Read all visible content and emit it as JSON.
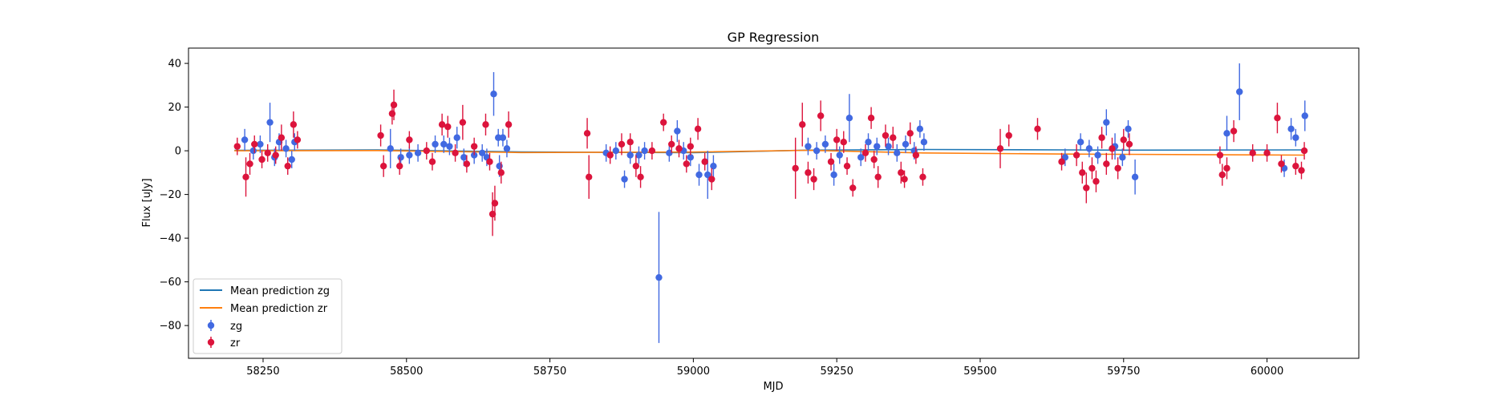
{
  "chart_data": {
    "type": "scatter",
    "title": "GP Regression",
    "xlabel": "MJD",
    "ylabel": "Flux [uJy]",
    "xlim": [
      58120,
      60160
    ],
    "ylim": [
      -95,
      47
    ],
    "xticks": [
      58250,
      58500,
      58750,
      59000,
      59250,
      59500,
      59750,
      60000
    ],
    "yticks": [
      -80,
      -60,
      -40,
      -20,
      0,
      20,
      40
    ],
    "grid": false,
    "legend_position": "lower-left",
    "lines": [
      {
        "name": "Mean prediction zg",
        "color": "#1f77b4",
        "x": [
          58200,
          58450,
          58700,
          59000,
          59200,
          59400,
          59650,
          59750,
          60065
        ],
        "y": [
          0.2,
          0.4,
          -0.5,
          -0.9,
          0.3,
          0.6,
          0.4,
          0.3,
          0.4
        ]
      },
      {
        "name": "Mean prediction zr",
        "color": "#ff7f0e",
        "x": [
          58200,
          58450,
          58700,
          59000,
          59200,
          59400,
          59650,
          59750,
          60065
        ],
        "y": [
          0.0,
          0.1,
          -0.8,
          -0.6,
          0.2,
          -1.0,
          -1.5,
          -1.6,
          -2.0
        ]
      }
    ],
    "series": [
      {
        "name": "zg",
        "color": "#4169e1",
        "points": [
          [
            58218,
            5,
            5
          ],
          [
            58233,
            0,
            4
          ],
          [
            58245,
            3,
            4
          ],
          [
            58262,
            13,
            9
          ],
          [
            58270,
            -3,
            4
          ],
          [
            58278,
            4,
            4
          ],
          [
            58290,
            1,
            4
          ],
          [
            58300,
            -4,
            4
          ],
          [
            58305,
            4,
            4
          ],
          [
            58472,
            1,
            9
          ],
          [
            58490,
            -3,
            4
          ],
          [
            58505,
            -2,
            4
          ],
          [
            58520,
            -1,
            4
          ],
          [
            58550,
            3,
            4
          ],
          [
            58565,
            3,
            4
          ],
          [
            58575,
            2,
            4
          ],
          [
            58588,
            6,
            5
          ],
          [
            58600,
            -3,
            4
          ],
          [
            58618,
            -2,
            4
          ],
          [
            58632,
            -1,
            4
          ],
          [
            58640,
            -3,
            4
          ],
          [
            58652,
            26,
            10
          ],
          [
            58660,
            6,
            4
          ],
          [
            58668,
            6,
            4
          ],
          [
            58675,
            1,
            4
          ],
          [
            58662,
            -7,
            5
          ],
          [
            58848,
            -1,
            4
          ],
          [
            58865,
            0,
            4
          ],
          [
            58880,
            -13,
            4
          ],
          [
            58890,
            -2,
            4
          ],
          [
            58905,
            -2,
            4
          ],
          [
            58915,
            0,
            4
          ],
          [
            58940,
            -58,
            30
          ],
          [
            58958,
            -1,
            4
          ],
          [
            58972,
            9,
            5
          ],
          [
            58983,
            0,
            4
          ],
          [
            58995,
            -3,
            4
          ],
          [
            59010,
            -11,
            5
          ],
          [
            59025,
            -11,
            11
          ],
          [
            59035,
            -7,
            5
          ],
          [
            59200,
            2,
            4
          ],
          [
            59215,
            0,
            4
          ],
          [
            59230,
            3,
            4
          ],
          [
            59245,
            -11,
            5
          ],
          [
            59255,
            -2,
            4
          ],
          [
            59272,
            15,
            11
          ],
          [
            59292,
            -3,
            4
          ],
          [
            59305,
            4,
            4
          ],
          [
            59320,
            2,
            4
          ],
          [
            59340,
            2,
            4
          ],
          [
            59355,
            -1,
            4
          ],
          [
            59370,
            3,
            4
          ],
          [
            59385,
            0,
            4
          ],
          [
            59395,
            10,
            4
          ],
          [
            59402,
            4,
            4
          ],
          [
            59648,
            -3,
            4
          ],
          [
            59675,
            4,
            4
          ],
          [
            59690,
            1,
            4
          ],
          [
            59705,
            -2,
            4
          ],
          [
            59720,
            13,
            6
          ],
          [
            59735,
            2,
            6
          ],
          [
            59748,
            -3,
            4
          ],
          [
            59758,
            10,
            4
          ],
          [
            59770,
            -12,
            8
          ],
          [
            59930,
            8,
            8
          ],
          [
            59952,
            27,
            13
          ],
          [
            60030,
            -8,
            4
          ],
          [
            60042,
            10,
            5
          ],
          [
            60050,
            6,
            4
          ],
          [
            60066,
            16,
            7
          ]
        ]
      },
      {
        "name": "zr",
        "color": "#dc143c",
        "points": [
          [
            58205,
            2,
            4
          ],
          [
            58220,
            -12,
            9
          ],
          [
            58227,
            -6,
            5
          ],
          [
            58235,
            3,
            4
          ],
          [
            58248,
            -4,
            4
          ],
          [
            58258,
            -1,
            4
          ],
          [
            58272,
            -2,
            4
          ],
          [
            58282,
            6,
            6
          ],
          [
            58293,
            -7,
            4
          ],
          [
            58303,
            12,
            6
          ],
          [
            58310,
            5,
            4
          ],
          [
            58455,
            7,
            5
          ],
          [
            58460,
            -7,
            5
          ],
          [
            58475,
            17,
            5
          ],
          [
            58478,
            21,
            7
          ],
          [
            58488,
            -7,
            4
          ],
          [
            58505,
            5,
            4
          ],
          [
            58535,
            0,
            4
          ],
          [
            58545,
            -5,
            4
          ],
          [
            58562,
            12,
            5
          ],
          [
            58572,
            11,
            5
          ],
          [
            58585,
            -1,
            4
          ],
          [
            58598,
            13,
            8
          ],
          [
            58605,
            -6,
            4
          ],
          [
            58618,
            2,
            4
          ],
          [
            58638,
            12,
            5
          ],
          [
            58645,
            -5,
            4
          ],
          [
            58650,
            -29,
            10
          ],
          [
            58654,
            -24,
            8
          ],
          [
            58665,
            -10,
            5
          ],
          [
            58678,
            12,
            6
          ],
          [
            58815,
            8,
            7
          ],
          [
            58818,
            -12,
            10
          ],
          [
            58855,
            -2,
            4
          ],
          [
            58875,
            3,
            5
          ],
          [
            58890,
            4,
            4
          ],
          [
            58900,
            -7,
            5
          ],
          [
            58908,
            -12,
            5
          ],
          [
            58928,
            0,
            4
          ],
          [
            58948,
            13,
            4
          ],
          [
            58962,
            3,
            4
          ],
          [
            58975,
            1,
            4
          ],
          [
            58988,
            -6,
            4
          ],
          [
            58995,
            2,
            4
          ],
          [
            59008,
            10,
            5
          ],
          [
            59020,
            -5,
            4
          ],
          [
            59032,
            -13,
            5
          ],
          [
            59178,
            -8,
            14
          ],
          [
            59190,
            12,
            10
          ],
          [
            59200,
            -10,
            5
          ],
          [
            59210,
            -13,
            5
          ],
          [
            59222,
            16,
            7
          ],
          [
            59240,
            -5,
            4
          ],
          [
            59250,
            5,
            5
          ],
          [
            59262,
            4,
            5
          ],
          [
            59268,
            -7,
            4
          ],
          [
            59278,
            -17,
            4
          ],
          [
            59300,
            -1,
            4
          ],
          [
            59310,
            15,
            5
          ],
          [
            59315,
            -4,
            4
          ],
          [
            59322,
            -12,
            5
          ],
          [
            59335,
            7,
            5
          ],
          [
            59348,
            6,
            5
          ],
          [
            59362,
            -10,
            5
          ],
          [
            59368,
            -13,
            4
          ],
          [
            59378,
            8,
            5
          ],
          [
            59388,
            -2,
            4
          ],
          [
            59400,
            -12,
            4
          ],
          [
            59535,
            1,
            9
          ],
          [
            59550,
            7,
            5
          ],
          [
            59600,
            10,
            5
          ],
          [
            59642,
            -5,
            4
          ],
          [
            59668,
            -2,
            5
          ],
          [
            59678,
            -10,
            5
          ],
          [
            59685,
            -17,
            7
          ],
          [
            59695,
            -8,
            5
          ],
          [
            59702,
            -14,
            5
          ],
          [
            59712,
            6,
            5
          ],
          [
            59720,
            -6,
            5
          ],
          [
            59730,
            1,
            5
          ],
          [
            59740,
            -8,
            5
          ],
          [
            59750,
            5,
            5
          ],
          [
            59760,
            3,
            5
          ],
          [
            59918,
            -2,
            4
          ],
          [
            59922,
            -11,
            5
          ],
          [
            59930,
            -8,
            5
          ],
          [
            59942,
            9,
            5
          ],
          [
            59975,
            -1,
            4
          ],
          [
            60000,
            -1,
            4
          ],
          [
            60018,
            15,
            7
          ],
          [
            60025,
            -6,
            4
          ],
          [
            60050,
            -7,
            4
          ],
          [
            60060,
            -9,
            4
          ],
          [
            60065,
            0,
            4
          ]
        ]
      }
    ]
  }
}
